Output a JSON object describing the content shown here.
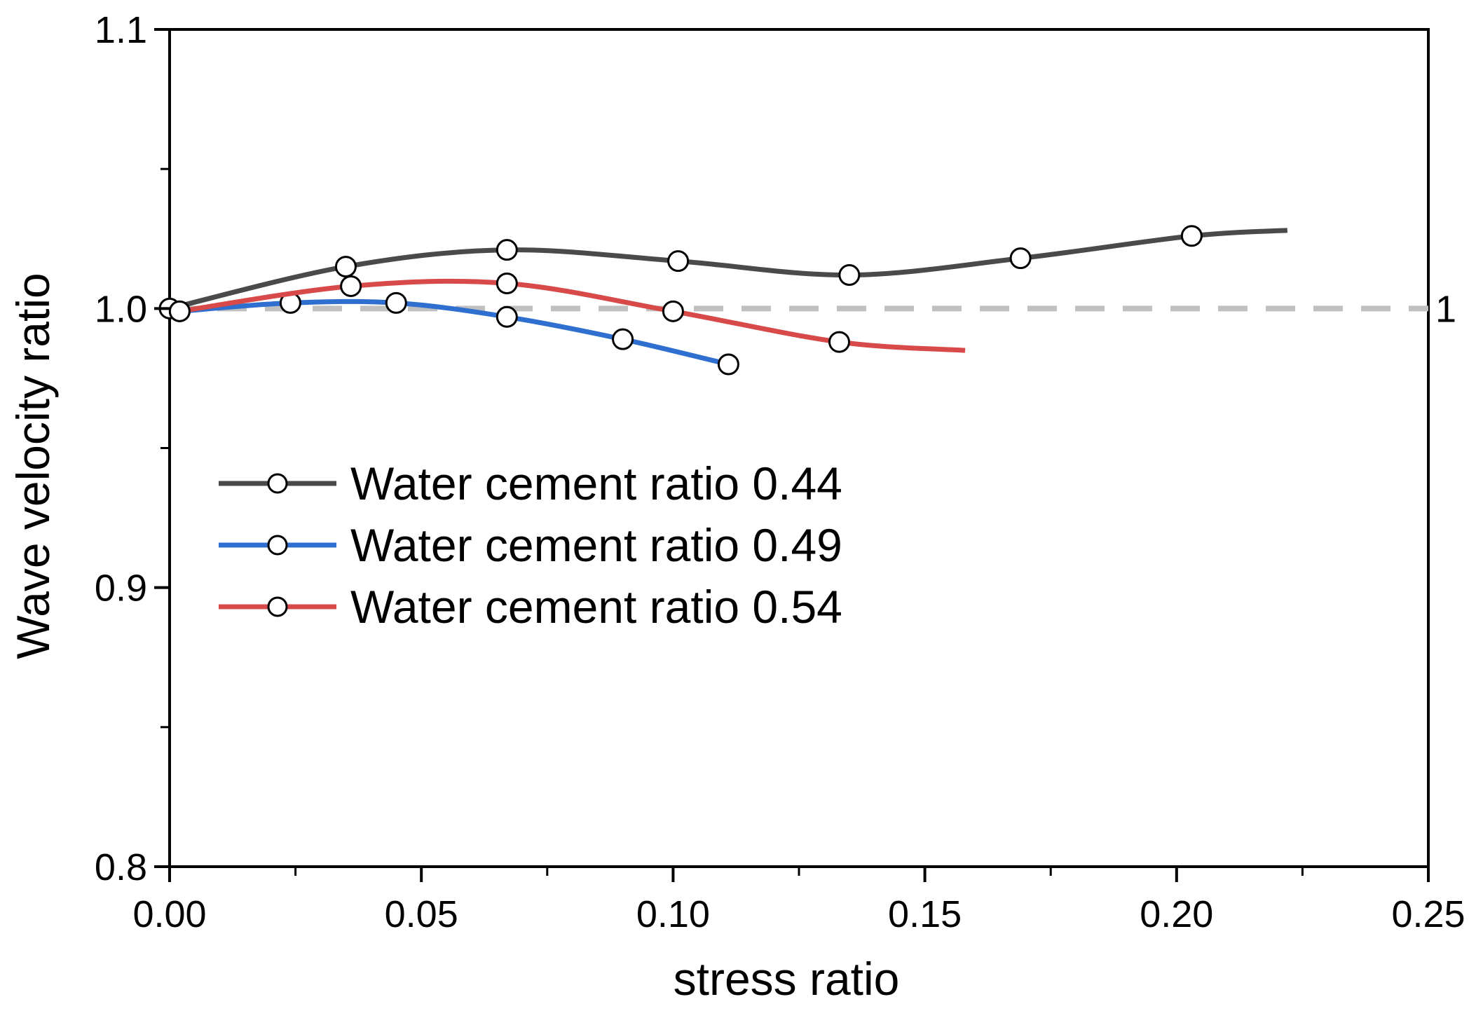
{
  "chart_data": {
    "type": "line",
    "title": "",
    "xlabel": "stress ratio",
    "ylabel": "Wave velocity ratio",
    "xlim": [
      0.0,
      0.25
    ],
    "ylim": [
      0.8,
      1.1
    ],
    "x_ticks": [
      "0.00",
      "0.05",
      "0.10",
      "0.15",
      "0.20",
      "0.25"
    ],
    "y_ticks": [
      "0.8",
      "0.9",
      "1.0",
      "1.1"
    ],
    "reference_line": {
      "y": 1.0,
      "label": "1",
      "color": "#c0c0c0",
      "style": "dashed"
    },
    "legend_position": "center-left",
    "series": [
      {
        "name": "Water cement ratio 0.44",
        "color": "#4a4a4a",
        "points": [
          [
            0.0,
            1.0
          ],
          [
            0.035,
            1.015
          ],
          [
            0.067,
            1.021
          ],
          [
            0.101,
            1.017
          ],
          [
            0.135,
            1.012
          ],
          [
            0.169,
            1.018
          ],
          [
            0.203,
            1.026
          ]
        ],
        "line_end": [
          0.222,
          1.028
        ]
      },
      {
        "name": "Water cement ratio 0.49",
        "color": "#2f6fd0",
        "points": [
          [
            0.002,
            0.999
          ],
          [
            0.024,
            1.002
          ],
          [
            0.045,
            1.002
          ],
          [
            0.067,
            0.997
          ],
          [
            0.09,
            0.989
          ],
          [
            0.111,
            0.98
          ]
        ],
        "line_end": [
          0.111,
          0.98
        ]
      },
      {
        "name": "Water cement ratio 0.54",
        "color": "#d84a4a",
        "points": [
          [
            0.002,
            0.999
          ],
          [
            0.036,
            1.008
          ],
          [
            0.067,
            1.009
          ],
          [
            0.1,
            0.999
          ],
          [
            0.133,
            0.988
          ]
        ],
        "line_end": [
          0.158,
          0.985
        ]
      }
    ]
  }
}
